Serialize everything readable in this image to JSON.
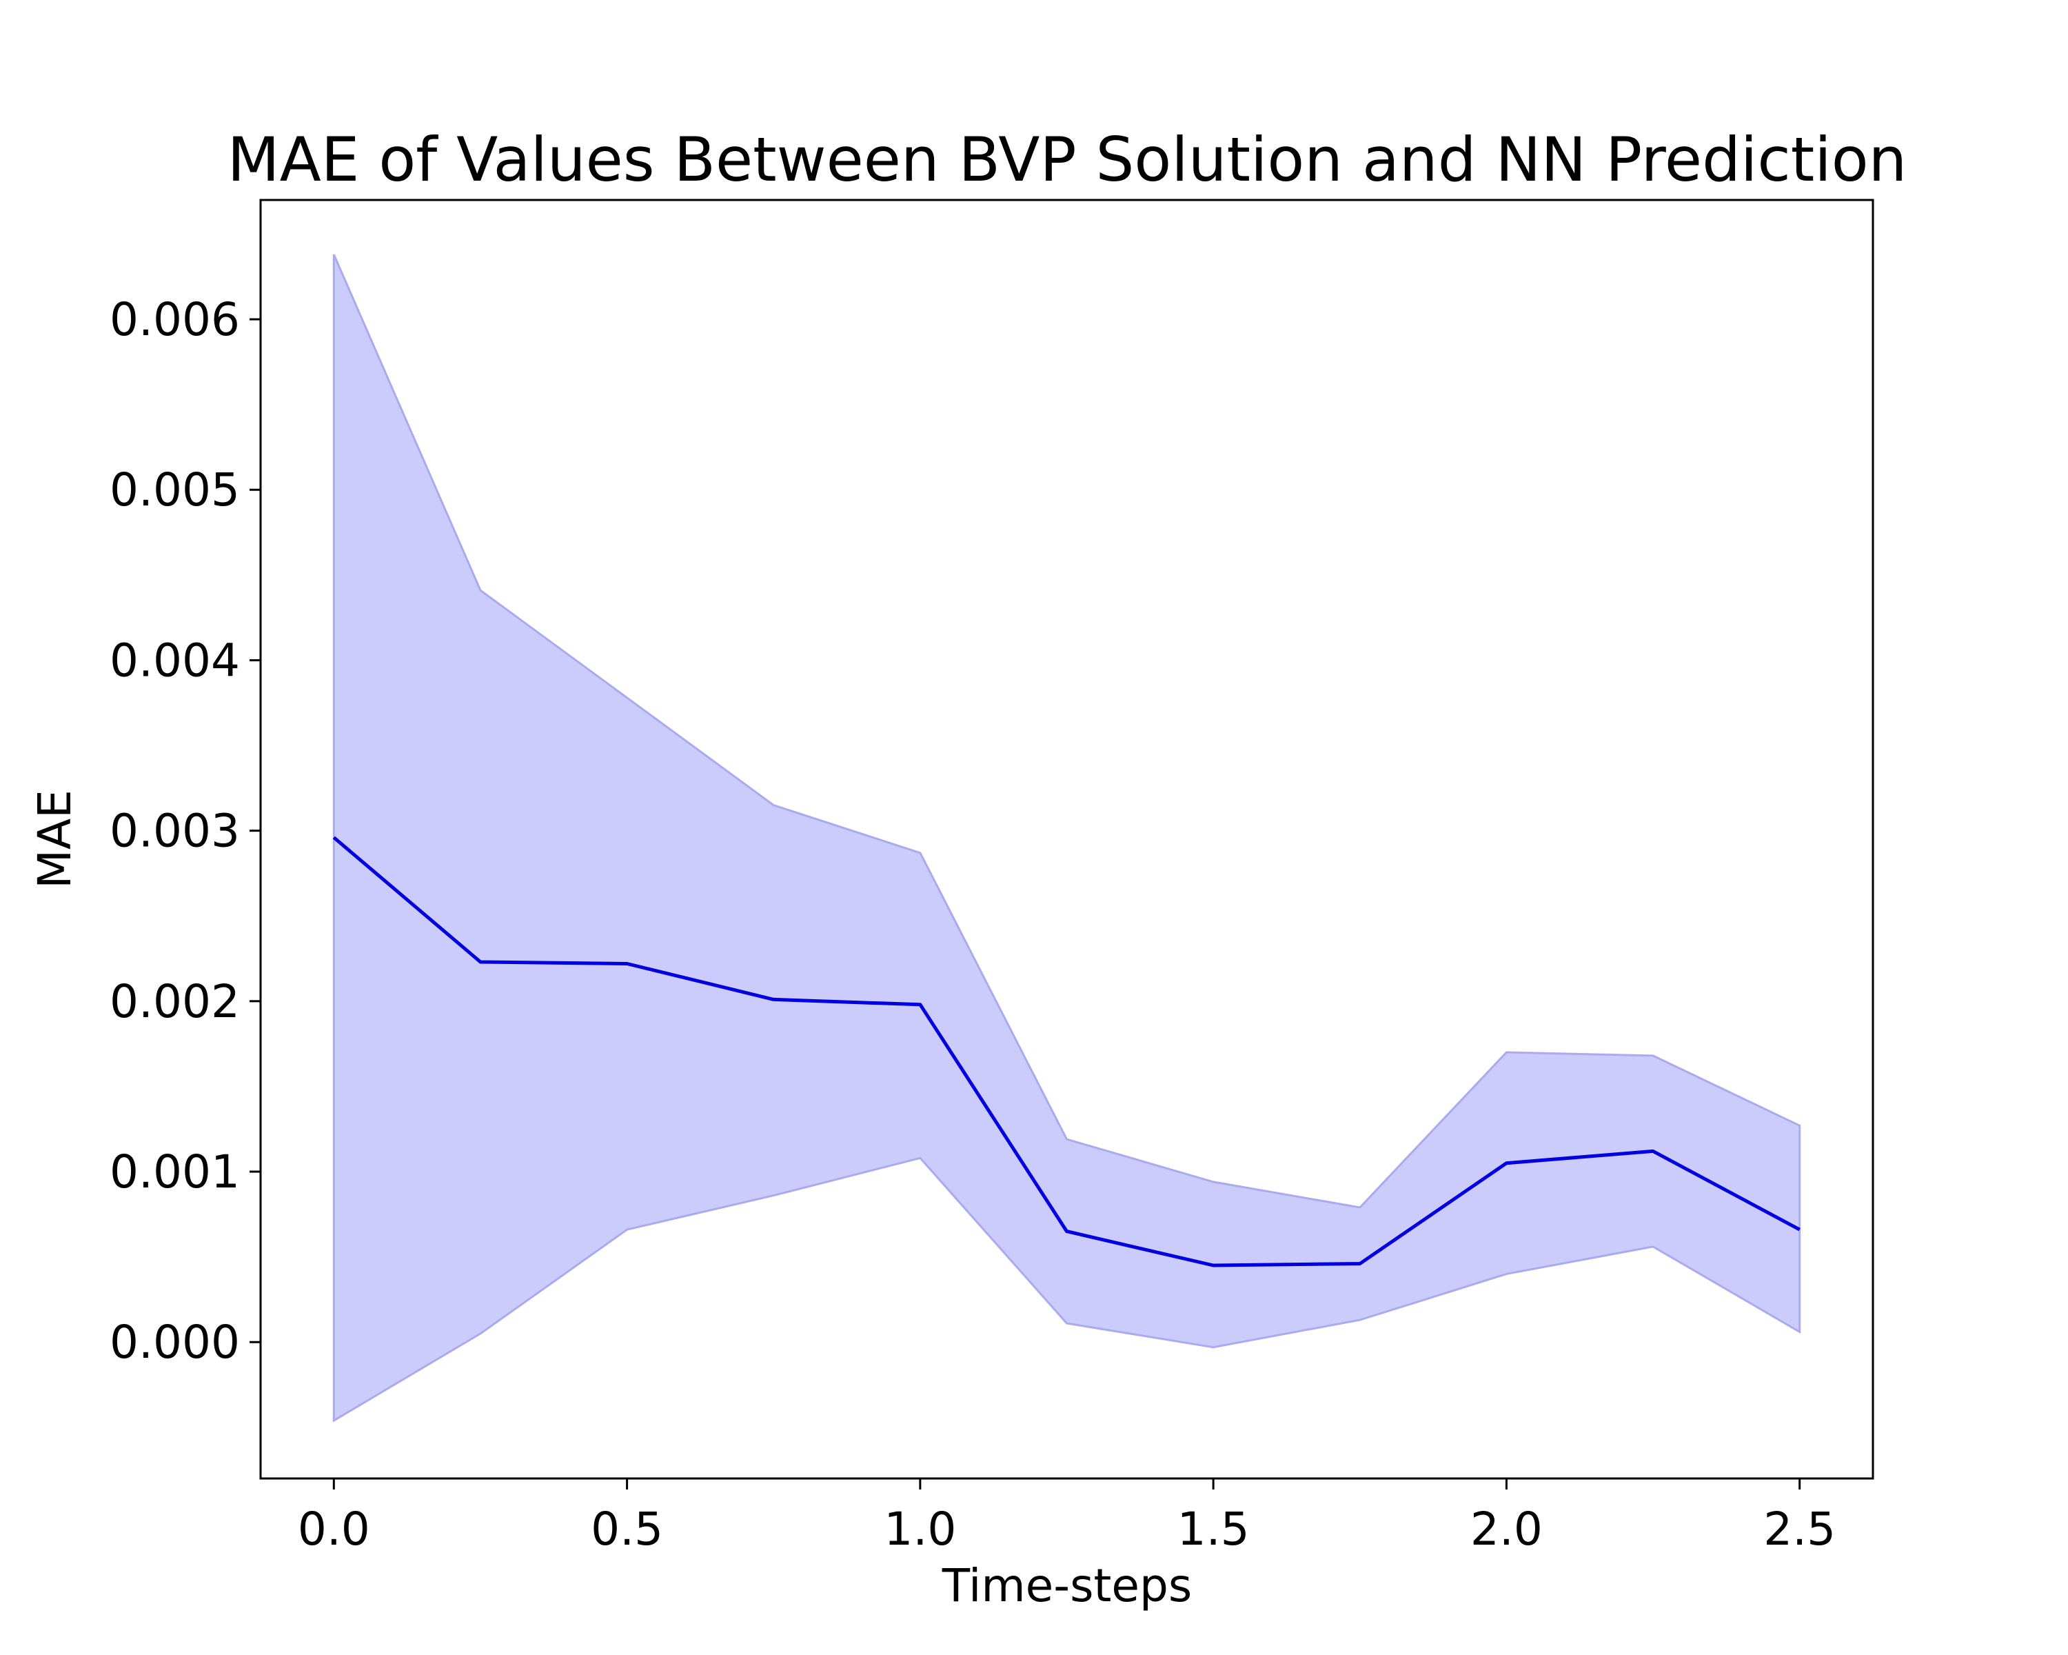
{
  "chart_data": {
    "type": "line",
    "title": "MAE of Values Between BVP Solution and NN Prediction",
    "xlabel": "Time-steps",
    "ylabel": "MAE",
    "xlim": [
      -0.125,
      2.625
    ],
    "ylim": [
      -0.0008,
      0.0067
    ],
    "x_ticks": [
      "0.0",
      "0.5",
      "1.0",
      "1.5",
      "2.0",
      "2.5"
    ],
    "y_ticks": [
      "0.000",
      "0.001",
      "0.002",
      "0.003",
      "0.004",
      "0.005",
      "0.006"
    ],
    "grid": false,
    "series": [
      {
        "x": [
          0.0,
          0.25,
          0.5,
          0.75,
          1.0,
          1.25,
          1.5,
          1.75,
          2.0,
          2.25,
          2.5
        ],
        "values": [
          0.00296,
          0.00223,
          0.00222,
          0.00201,
          0.00198,
          0.00065,
          0.00045,
          0.00046,
          0.00105,
          0.00112,
          0.00066
        ],
        "upper": [
          0.00638,
          0.00441,
          0.00378,
          0.00315,
          0.00287,
          0.00119,
          0.00094,
          0.00079,
          0.0017,
          0.00168,
          0.00127
        ],
        "lower": [
          -0.00046,
          5e-05,
          0.00066,
          0.00086,
          0.00108,
          0.00011,
          -3e-05,
          0.00013,
          0.0004,
          0.00056,
          6e-05
        ],
        "line_color": "#0000e0",
        "band_color": "#ccccfc",
        "band_edge_color": "#aaaaf0"
      }
    ]
  }
}
